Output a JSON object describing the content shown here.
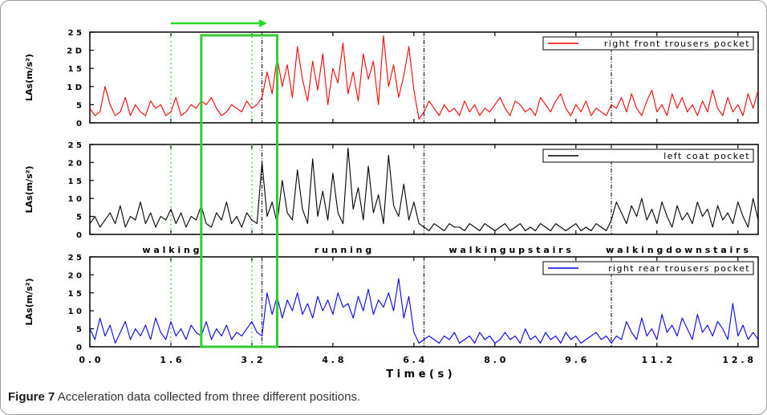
{
  "caption": {
    "label": "Figure 7",
    "text": "Acceleration data collected from three different positions."
  },
  "chart_data": {
    "type": "line",
    "xlabel": "T i m e ( s )",
    "xlim": [
      0,
      13.2
    ],
    "xticks": [
      0.0,
      1.6,
      3.2,
      4.8,
      6.4,
      8.0,
      9.6,
      11.2,
      12.8
    ],
    "xtick_labels": [
      "0 . 0",
      "1 . 6",
      "3 . 2",
      "4 . 8",
      "6 . 4",
      "8 . 0",
      "9 . 6",
      "1 1 . 2",
      "1 2 . 8"
    ],
    "ylabel": "LAs(m/s²)",
    "ylim": [
      0,
      25
    ],
    "yticks": [
      0,
      5,
      10,
      15,
      20,
      25
    ],
    "ytick_labels": [
      "0",
      "5",
      "1 0",
      "1 5",
      "2 0",
      "2 5"
    ],
    "ytick_labels_upper": [
      "0",
      "5",
      "1 D",
      "1 5",
      "2 D",
      "2 5"
    ],
    "activity_boundaries": [
      3.4,
      6.6,
      10.3
    ],
    "activities": [
      {
        "label": "w a l k i n g",
        "center": 1.6
      },
      {
        "label": "r u n n i n g",
        "center": 5.0
      },
      {
        "label": "w a l k i n g   u p s t a i r s",
        "center": 8.3
      },
      {
        "label": "w a l k i n g   d o w n s t a i r s",
        "center": 11.6
      }
    ],
    "window_lines": [
      1.6,
      3.2
    ],
    "window_rect": [
      2.2,
      3.7
    ],
    "arrow": [
      1.6,
      3.5
    ],
    "colors": {
      "window": "#33cc33",
      "arrow": "#22dd22"
    },
    "series": [
      {
        "name": "right front trousers pocket",
        "color": "#ff0000",
        "x": [
          0.0,
          0.1,
          0.2,
          0.3,
          0.4,
          0.5,
          0.6,
          0.7,
          0.8,
          0.9,
          1.0,
          1.1,
          1.2,
          1.3,
          1.4,
          1.5,
          1.6,
          1.7,
          1.8,
          1.9,
          2.0,
          2.1,
          2.2,
          2.3,
          2.4,
          2.5,
          2.6,
          2.7,
          2.8,
          2.9,
          3.0,
          3.1,
          3.2,
          3.3,
          3.4,
          3.5,
          3.6,
          3.7,
          3.8,
          3.9,
          4.0,
          4.1,
          4.2,
          4.3,
          4.4,
          4.5,
          4.6,
          4.7,
          4.8,
          4.9,
          5.0,
          5.1,
          5.2,
          5.3,
          5.4,
          5.5,
          5.6,
          5.7,
          5.8,
          5.9,
          6.0,
          6.1,
          6.2,
          6.3,
          6.4,
          6.5,
          6.6,
          6.7,
          6.8,
          6.9,
          7.0,
          7.1,
          7.2,
          7.3,
          7.4,
          7.5,
          7.6,
          7.7,
          7.8,
          7.9,
          8.0,
          8.1,
          8.2,
          8.3,
          8.4,
          8.5,
          8.6,
          8.7,
          8.8,
          8.9,
          9.0,
          9.1,
          9.2,
          9.3,
          9.4,
          9.5,
          9.6,
          9.7,
          9.8,
          9.9,
          10.0,
          10.1,
          10.2,
          10.3,
          10.4,
          10.5,
          10.6,
          10.7,
          10.8,
          10.9,
          11.0,
          11.1,
          11.2,
          11.3,
          11.4,
          11.5,
          11.6,
          11.7,
          11.8,
          11.9,
          12.0,
          12.1,
          12.2,
          12.3,
          12.4,
          12.5,
          12.6,
          12.7,
          12.8,
          12.9,
          13.0,
          13.1,
          13.2
        ],
        "values": [
          4,
          2,
          3,
          10,
          5,
          2,
          3,
          7,
          2,
          5,
          3,
          2,
          6,
          4,
          5,
          2,
          3,
          7,
          2,
          3,
          5,
          4,
          6,
          5,
          7,
          4,
          2,
          3,
          5,
          4,
          3,
          6,
          4,
          5,
          7,
          14,
          8,
          18,
          10,
          16,
          7,
          21,
          12,
          6,
          17,
          9,
          19,
          5,
          15,
          11,
          22,
          8,
          14,
          6,
          19,
          12,
          17,
          5,
          24,
          10,
          16,
          7,
          13,
          21,
          9,
          1,
          3,
          6,
          4,
          2,
          5,
          3,
          4,
          2,
          6,
          3,
          5,
          2,
          4,
          3,
          5,
          7,
          4,
          2,
          6,
          5,
          3,
          4,
          2,
          7,
          5,
          3,
          6,
          8,
          4,
          2,
          5,
          3,
          6,
          2,
          4,
          3,
          2,
          5,
          4,
          7,
          3,
          8,
          4,
          2,
          6,
          9,
          3,
          5,
          2,
          8,
          4,
          7,
          3,
          5,
          2,
          6,
          3,
          9,
          4,
          2,
          7,
          3,
          5,
          2,
          8,
          4,
          9
        ]
      },
      {
        "name": "left coat pocket",
        "color": "#000000",
        "x": [
          0.0,
          0.1,
          0.2,
          0.3,
          0.4,
          0.5,
          0.6,
          0.7,
          0.8,
          0.9,
          1.0,
          1.1,
          1.2,
          1.3,
          1.4,
          1.5,
          1.6,
          1.7,
          1.8,
          1.9,
          2.0,
          2.1,
          2.2,
          2.3,
          2.4,
          2.5,
          2.6,
          2.7,
          2.8,
          2.9,
          3.0,
          3.1,
          3.2,
          3.3,
          3.4,
          3.5,
          3.6,
          3.7,
          3.8,
          3.9,
          4.0,
          4.1,
          4.2,
          4.3,
          4.4,
          4.5,
          4.6,
          4.7,
          4.8,
          4.9,
          5.0,
          5.1,
          5.2,
          5.3,
          5.4,
          5.5,
          5.6,
          5.7,
          5.8,
          5.9,
          6.0,
          6.1,
          6.2,
          6.3,
          6.4,
          6.5,
          6.6,
          6.7,
          6.8,
          6.9,
          7.0,
          7.1,
          7.2,
          7.3,
          7.4,
          7.5,
          7.6,
          7.7,
          7.8,
          7.9,
          8.0,
          8.1,
          8.2,
          8.3,
          8.4,
          8.5,
          8.6,
          8.7,
          8.8,
          8.9,
          9.0,
          9.1,
          9.2,
          9.3,
          9.4,
          9.5,
          9.6,
          9.7,
          9.8,
          9.9,
          10.0,
          10.1,
          10.2,
          10.3,
          10.4,
          10.5,
          10.6,
          10.7,
          10.8,
          10.9,
          11.0,
          11.1,
          11.2,
          11.3,
          11.4,
          11.5,
          11.6,
          11.7,
          11.8,
          11.9,
          12.0,
          12.1,
          12.2,
          12.3,
          12.4,
          12.5,
          12.6,
          12.7,
          12.8,
          12.9,
          13.0,
          13.1,
          13.2
        ],
        "values": [
          3,
          5,
          2,
          4,
          6,
          3,
          8,
          2,
          5,
          4,
          9,
          3,
          6,
          2,
          5,
          4,
          7,
          3,
          6,
          2,
          5,
          4,
          8,
          3,
          2,
          6,
          4,
          9,
          3,
          5,
          2,
          6,
          4,
          3,
          20,
          5,
          9,
          3,
          15,
          6,
          4,
          18,
          7,
          3,
          21,
          5,
          12,
          4,
          17,
          6,
          3,
          24,
          7,
          13,
          4,
          19,
          6,
          11,
          3,
          22,
          8,
          5,
          14,
          4,
          9,
          3,
          2,
          1,
          3,
          2,
          1,
          3,
          2,
          2,
          1,
          3,
          2,
          1,
          3,
          2,
          1,
          2,
          3,
          1,
          2,
          3,
          1,
          2,
          1,
          3,
          2,
          1,
          3,
          2,
          1,
          2,
          3,
          1,
          2,
          1,
          3,
          2,
          1,
          4,
          9,
          6,
          3,
          8,
          5,
          10,
          4,
          7,
          3,
          9,
          5,
          2,
          8,
          4,
          6,
          3,
          9,
          5,
          7,
          2,
          8,
          4,
          6,
          3,
          9,
          5,
          2,
          10,
          4
        ]
      },
      {
        "name": "right rear trousers pocket",
        "color": "#0000ff",
        "x": [
          0.0,
          0.1,
          0.2,
          0.3,
          0.4,
          0.5,
          0.6,
          0.7,
          0.8,
          0.9,
          1.0,
          1.1,
          1.2,
          1.3,
          1.4,
          1.5,
          1.6,
          1.7,
          1.8,
          1.9,
          2.0,
          2.1,
          2.2,
          2.3,
          2.4,
          2.5,
          2.6,
          2.7,
          2.8,
          2.9,
          3.0,
          3.1,
          3.2,
          3.3,
          3.4,
          3.5,
          3.6,
          3.7,
          3.8,
          3.9,
          4.0,
          4.1,
          4.2,
          4.3,
          4.4,
          4.5,
          4.6,
          4.7,
          4.8,
          4.9,
          5.0,
          5.1,
          5.2,
          5.3,
          5.4,
          5.5,
          5.6,
          5.7,
          5.8,
          5.9,
          6.0,
          6.1,
          6.2,
          6.3,
          6.4,
          6.5,
          6.6,
          6.7,
          6.8,
          6.9,
          7.0,
          7.1,
          7.2,
          7.3,
          7.4,
          7.5,
          7.6,
          7.7,
          7.8,
          7.9,
          8.0,
          8.1,
          8.2,
          8.3,
          8.4,
          8.5,
          8.6,
          8.7,
          8.8,
          8.9,
          9.0,
          9.1,
          9.2,
          9.3,
          9.4,
          9.5,
          9.6,
          9.7,
          9.8,
          9.9,
          10.0,
          10.1,
          10.2,
          10.3,
          10.4,
          10.5,
          10.6,
          10.7,
          10.8,
          10.9,
          11.0,
          11.1,
          11.2,
          11.3,
          11.4,
          11.5,
          11.6,
          11.7,
          11.8,
          11.9,
          12.0,
          12.1,
          12.2,
          12.3,
          12.4,
          12.5,
          12.6,
          12.7,
          12.8,
          12.9,
          13.0,
          13.1,
          13.2
        ],
        "values": [
          5,
          2,
          8,
          3,
          6,
          1,
          4,
          7,
          2,
          5,
          3,
          6,
          2,
          8,
          4,
          2,
          7,
          3,
          5,
          2,
          6,
          4,
          3,
          7,
          2,
          5,
          3,
          6,
          2,
          4,
          3,
          5,
          7,
          4,
          3,
          15,
          9,
          14,
          8,
          13,
          10,
          15,
          9,
          12,
          8,
          14,
          10,
          13,
          9,
          15,
          11,
          12,
          8,
          14,
          10,
          16,
          9,
          13,
          11,
          15,
          10,
          19,
          8,
          14,
          4,
          1,
          2,
          3,
          2,
          1,
          3,
          2,
          4,
          1,
          2,
          3,
          1,
          4,
          2,
          3,
          1,
          2,
          4,
          2,
          3,
          1,
          5,
          2,
          3,
          1,
          4,
          2,
          3,
          1,
          4,
          2,
          3,
          1,
          2,
          3,
          4,
          2,
          3,
          1,
          3,
          2,
          7,
          4,
          2,
          8,
          3,
          5,
          2,
          9,
          4,
          6,
          3,
          8,
          5,
          2,
          9,
          4,
          6,
          3,
          7,
          5,
          2,
          12,
          3,
          6,
          2,
          4,
          2
        ]
      }
    ]
  }
}
